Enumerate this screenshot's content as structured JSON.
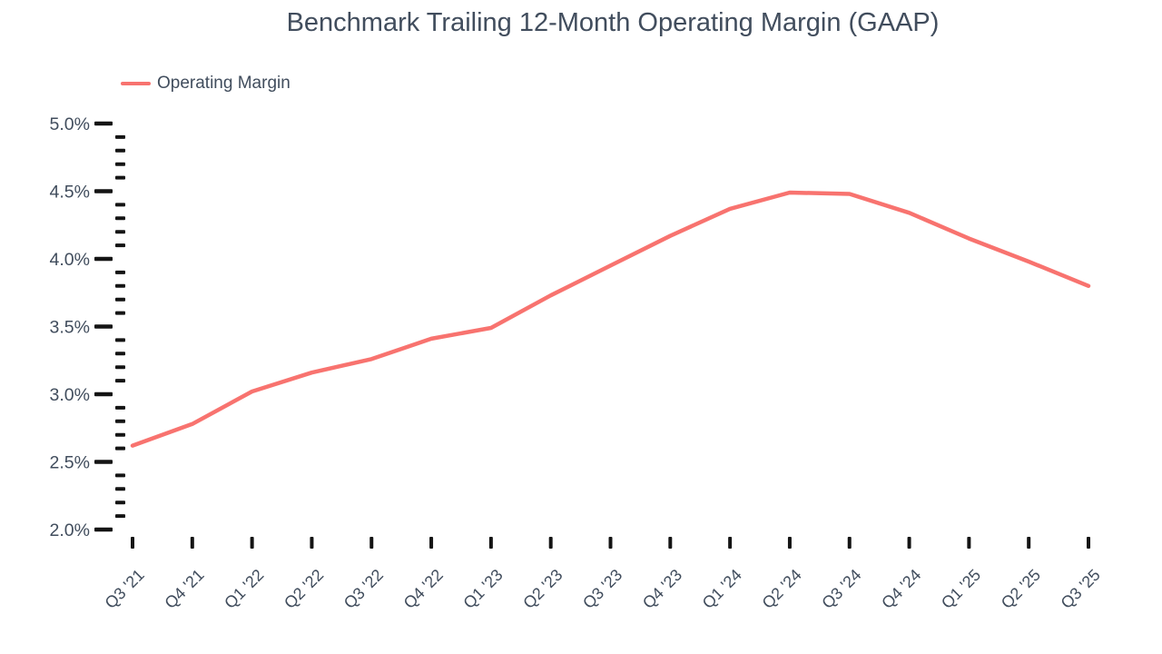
{
  "header": {
    "title": "Benchmark Trailing 12-Month Operating Margin (GAAP)"
  },
  "legend": {
    "label": "Operating Margin",
    "swatch_color": "#F8736F"
  },
  "colors": {
    "line": "#F8736F",
    "text": "#414D5D",
    "tick": "#141414",
    "background": "#ffffff"
  },
  "chart_data": {
    "type": "line",
    "title": "Benchmark Trailing 12-Month Operating Margin (GAAP)",
    "categories": [
      "Q3 '21",
      "Q4 '21",
      "Q1 '22",
      "Q2 '22",
      "Q3 '22",
      "Q4 '22",
      "Q1 '23",
      "Q2 '23",
      "Q3 '23",
      "Q4 '23",
      "Q1 '24",
      "Q2 '24",
      "Q3 '24",
      "Q4 '24",
      "Q1 '25",
      "Q2 '25",
      "Q3 '25"
    ],
    "series": [
      {
        "name": "Operating Margin",
        "color": "#F8736F",
        "unit": "%",
        "values": [
          2.62,
          2.78,
          3.02,
          3.16,
          3.26,
          3.41,
          3.49,
          3.73,
          3.95,
          4.17,
          4.37,
          4.49,
          4.48,
          4.34,
          4.15,
          3.98,
          3.8
        ]
      }
    ],
    "xlabel": "",
    "ylabel": "",
    "y_axis": {
      "min": 2.0,
      "max": 5.0,
      "major_step": 0.5,
      "minor_step": 0.1,
      "tick_labels": [
        "2.0%",
        "2.5%",
        "3.0%",
        "3.5%",
        "4.0%",
        "4.5%",
        "5.0%"
      ]
    },
    "grid": false,
    "legend_position": "top-left",
    "x_tick_rotation_deg": 45
  }
}
